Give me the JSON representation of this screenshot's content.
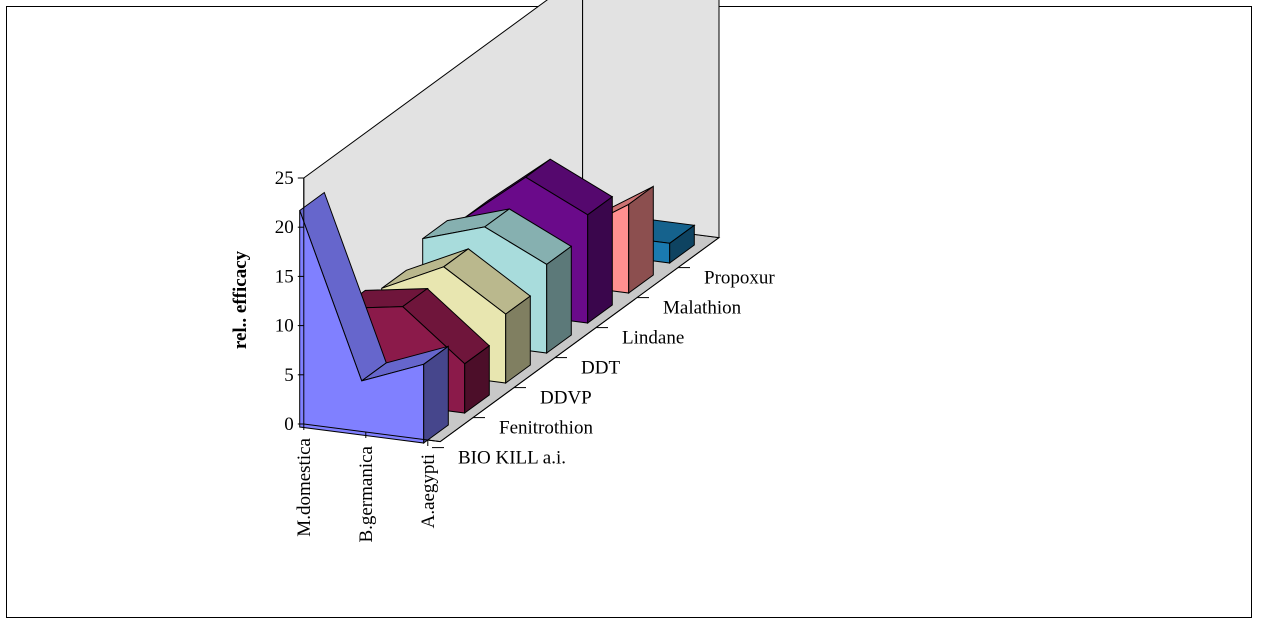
{
  "chart_data": {
    "type": "area",
    "ylabel": "rel.. efficacy",
    "ylim": [
      0,
      25
    ],
    "yticks": [
      0,
      5,
      10,
      15,
      20,
      25
    ],
    "categories": [
      "M.domestica",
      "B.germanica",
      "A.aegypti"
    ],
    "series": [
      {
        "name": "BIO KILL a.i.",
        "values": [
          22,
          5.5,
          8
        ],
        "color": "#8080ff"
      },
      {
        "name": "Fenitrothion",
        "values": [
          9,
          10,
          5
        ],
        "color": "#8b1a4a"
      },
      {
        "name": "DDVP",
        "values": [
          8,
          11,
          7
        ],
        "color": "#e8e6b0"
      },
      {
        "name": "DDT",
        "values": [
          10,
          12,
          9
        ],
        "color": "#a8dcdc"
      },
      {
        "name": "Lindane",
        "values": [
          9,
          14,
          11
        ],
        "color": "#6a0a8a"
      },
      {
        "name": "Malathion",
        "values": [
          6,
          5,
          9
        ],
        "color": "#ff9090"
      },
      {
        "name": "Propoxur",
        "values": [
          3,
          2,
          2
        ],
        "color": "#1a7ab0"
      }
    ],
    "grid": false,
    "legend": "none"
  }
}
